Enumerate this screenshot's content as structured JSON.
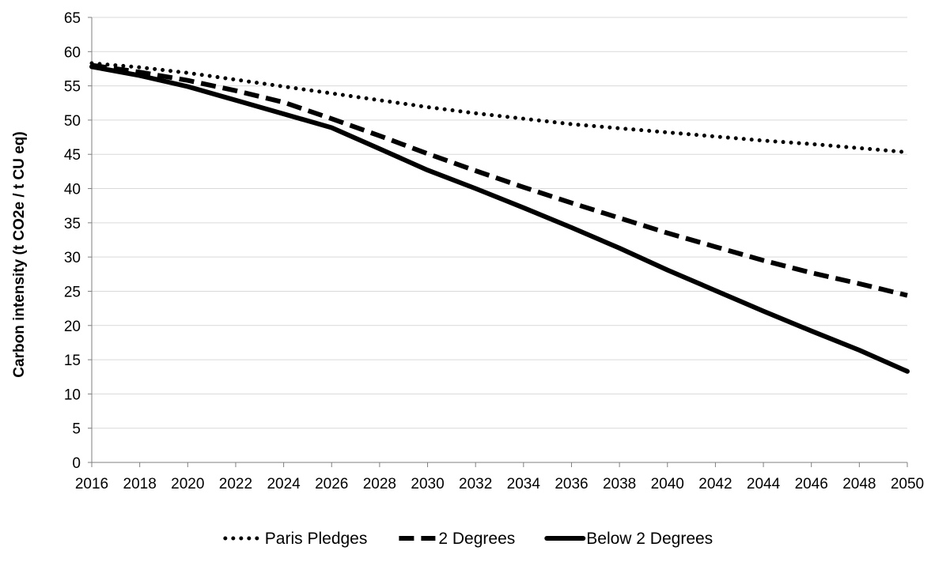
{
  "chart_data": {
    "type": "line",
    "title": "",
    "xlabel": "",
    "ylabel": "Carbon intensity (t CO2e / t CU eq)",
    "ylim": [
      0,
      65
    ],
    "y_ticks": [
      0,
      5,
      10,
      15,
      20,
      25,
      30,
      35,
      40,
      45,
      50,
      55,
      60,
      65
    ],
    "xlim": [
      2016,
      2050
    ],
    "x_ticks": [
      2016,
      2018,
      2020,
      2022,
      2024,
      2026,
      2028,
      2030,
      2032,
      2034,
      2036,
      2038,
      2040,
      2042,
      2044,
      2046,
      2048,
      2050
    ],
    "grid": "horizontal",
    "legend_position": "bottom",
    "series": [
      {
        "name": "Paris Pledges",
        "style": "dotted",
        "color": "#000000",
        "x": [
          2016,
          2018,
          2020,
          2022,
          2024,
          2026,
          2028,
          2030,
          2032,
          2034,
          2036,
          2038,
          2040,
          2042,
          2044,
          2046,
          2048,
          2050
        ],
        "values": [
          58.3,
          57.7,
          56.9,
          55.9,
          54.9,
          53.9,
          52.9,
          51.9,
          51.0,
          50.2,
          49.4,
          48.8,
          48.2,
          47.6,
          47.0,
          46.5,
          45.9,
          45.3
        ]
      },
      {
        "name": "2 Degrees",
        "style": "dashed",
        "color": "#000000",
        "x": [
          2016,
          2018,
          2020,
          2022,
          2024,
          2026,
          2028,
          2030,
          2032,
          2034,
          2036,
          2038,
          2040,
          2042,
          2044,
          2046,
          2048,
          2050
        ],
        "values": [
          58.0,
          57.0,
          55.8,
          54.3,
          52.6,
          50.2,
          47.7,
          45.1,
          42.6,
          40.2,
          37.9,
          35.7,
          33.5,
          31.5,
          29.5,
          27.7,
          26.1,
          24.4
        ]
      },
      {
        "name": "Below 2 Degrees",
        "style": "solid",
        "color": "#000000",
        "x": [
          2016,
          2018,
          2020,
          2022,
          2024,
          2026,
          2028,
          2030,
          2032,
          2034,
          2036,
          2038,
          2040,
          2042,
          2044,
          2046,
          2048,
          2050
        ],
        "values": [
          57.8,
          56.5,
          54.9,
          52.9,
          50.9,
          48.9,
          45.8,
          42.7,
          40.0,
          37.2,
          34.3,
          31.3,
          28.1,
          25.1,
          22.1,
          19.2,
          16.4,
          13.3
        ]
      }
    ]
  }
}
